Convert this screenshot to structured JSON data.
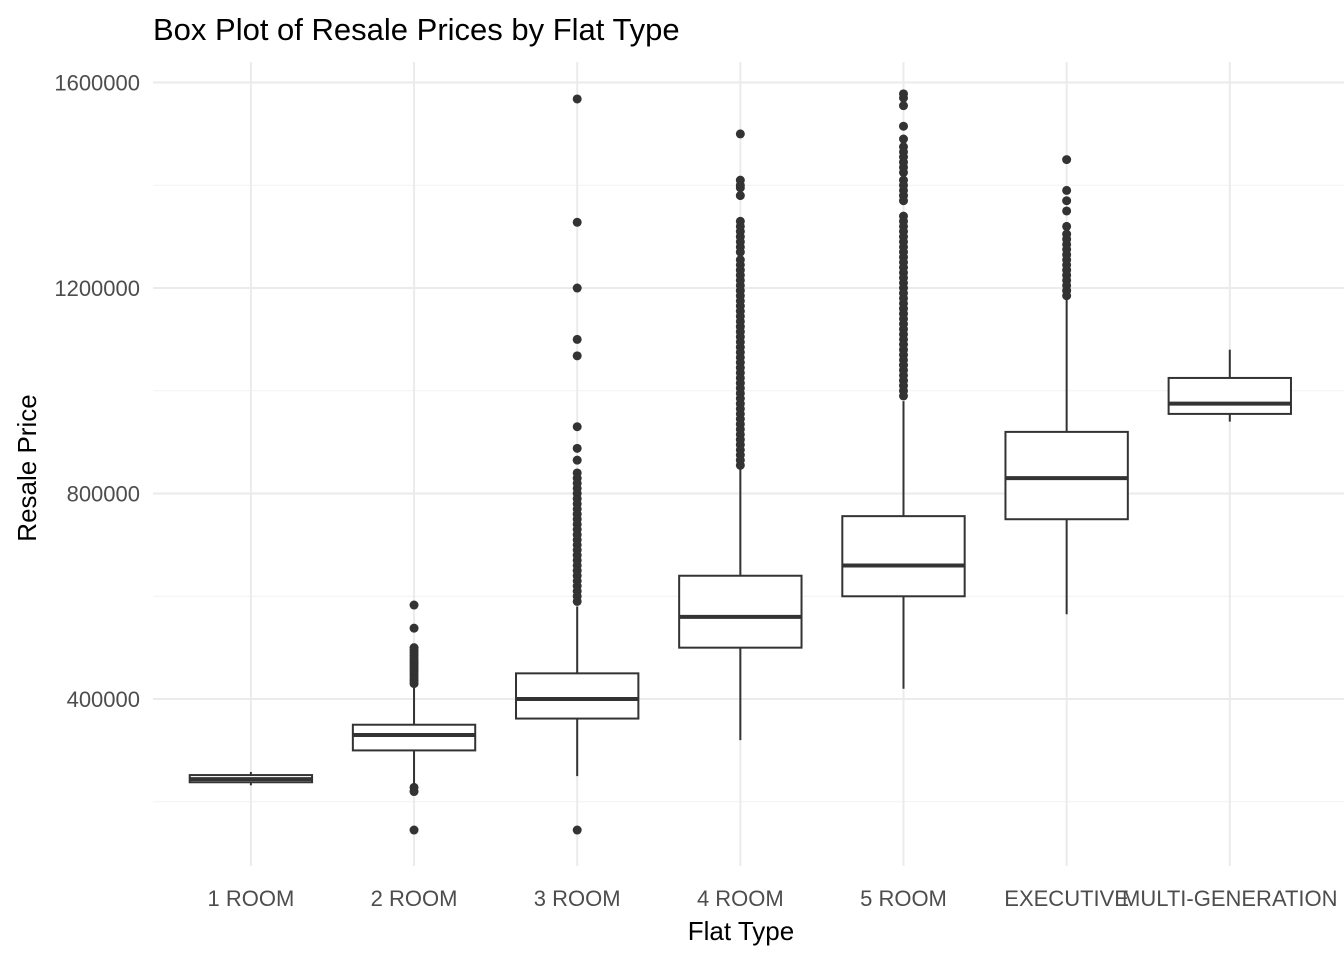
{
  "chart_data": {
    "type": "box",
    "title": "Box Plot of Resale Prices by Flat Type",
    "xlabel": "Flat Type",
    "ylabel": "Resale Price",
    "ylim": [
      75000,
      1640000
    ],
    "y_ticks": [
      400000,
      800000,
      1200000,
      1600000
    ],
    "y_tick_labels": [
      "400000",
      "800000",
      "1200000",
      "1600000"
    ],
    "grid": true,
    "categories": [
      "1 ROOM",
      "2 ROOM",
      "3 ROOM",
      "4 ROOM",
      "5 ROOM",
      "EXECUTIVE",
      "MULTI-GENERATION"
    ],
    "boxes": [
      {
        "category": "1 ROOM",
        "whisker_low": 232000,
        "q1": 238000,
        "median": 244000,
        "q3": 252000,
        "whisker_high": 258000,
        "outliers": []
      },
      {
        "category": "2 ROOM",
        "whisker_low": 232000,
        "q1": 300000,
        "median": 330000,
        "q3": 350000,
        "whisker_high": 425000,
        "outliers": [
          583000,
          538000,
          500000,
          495000,
          490000,
          485000,
          480000,
          475000,
          470000,
          465000,
          460000,
          455000,
          450000,
          445000,
          440000,
          435000,
          430000,
          228000,
          220000,
          145000
        ]
      },
      {
        "category": "3 ROOM",
        "whisker_low": 250000,
        "q1": 362000,
        "median": 400000,
        "q3": 450000,
        "whisker_high": 580000,
        "outliers": [
          1568000,
          1328000,
          1200000,
          1100000,
          1068000,
          930000,
          888000,
          865000,
          840000,
          830000,
          820000,
          810000,
          800000,
          790000,
          780000,
          770000,
          760000,
          750000,
          740000,
          730000,
          720000,
          710000,
          700000,
          690000,
          680000,
          670000,
          660000,
          650000,
          640000,
          630000,
          620000,
          610000,
          600000,
          590000,
          145000
        ]
      },
      {
        "category": "4 ROOM",
        "whisker_low": 320000,
        "q1": 500000,
        "median": 560000,
        "q3": 640000,
        "whisker_high": 848000,
        "outliers": [
          1500000,
          1410000,
          1400000,
          1395000,
          1380000,
          1330000,
          1320000,
          1310000,
          1300000,
          1290000,
          1280000,
          1270000,
          1255000,
          1245000,
          1235000,
          1225000,
          1215000,
          1205000,
          1195000,
          1185000,
          1175000,
          1165000,
          1155000,
          1145000,
          1135000,
          1125000,
          1115000,
          1105000,
          1095000,
          1085000,
          1075000,
          1065000,
          1055000,
          1045000,
          1035000,
          1025000,
          1015000,
          1005000,
          995000,
          985000,
          975000,
          965000,
          955000,
          945000,
          935000,
          925000,
          915000,
          905000,
          895000,
          885000,
          875000,
          865000,
          855000
        ]
      },
      {
        "category": "5 ROOM",
        "whisker_low": 420000,
        "q1": 600000,
        "median": 660000,
        "q3": 756000,
        "whisker_high": 980000,
        "outliers": [
          1578000,
          1570000,
          1555000,
          1515000,
          1490000,
          1475000,
          1465000,
          1455000,
          1445000,
          1435000,
          1425000,
          1410000,
          1400000,
          1390000,
          1380000,
          1370000,
          1340000,
          1330000,
          1320000,
          1310000,
          1300000,
          1290000,
          1280000,
          1270000,
          1260000,
          1250000,
          1240000,
          1230000,
          1220000,
          1210000,
          1200000,
          1190000,
          1180000,
          1170000,
          1160000,
          1150000,
          1140000,
          1130000,
          1120000,
          1110000,
          1100000,
          1090000,
          1080000,
          1070000,
          1060000,
          1050000,
          1040000,
          1030000,
          1020000,
          1010000,
          1000000,
          990000
        ]
      },
      {
        "category": "EXECUTIVE",
        "whisker_low": 565000,
        "q1": 750000,
        "median": 830000,
        "q3": 920000,
        "whisker_high": 1180000,
        "outliers": [
          1450000,
          1390000,
          1370000,
          1350000,
          1320000,
          1305000,
          1295000,
          1285000,
          1275000,
          1265000,
          1255000,
          1245000,
          1235000,
          1225000,
          1215000,
          1205000,
          1195000,
          1185000
        ]
      },
      {
        "category": "MULTI-GENERATION",
        "whisker_low": 940000,
        "q1": 955000,
        "median": 975000,
        "q3": 1025000,
        "whisker_high": 1080000,
        "outliers": []
      }
    ]
  }
}
